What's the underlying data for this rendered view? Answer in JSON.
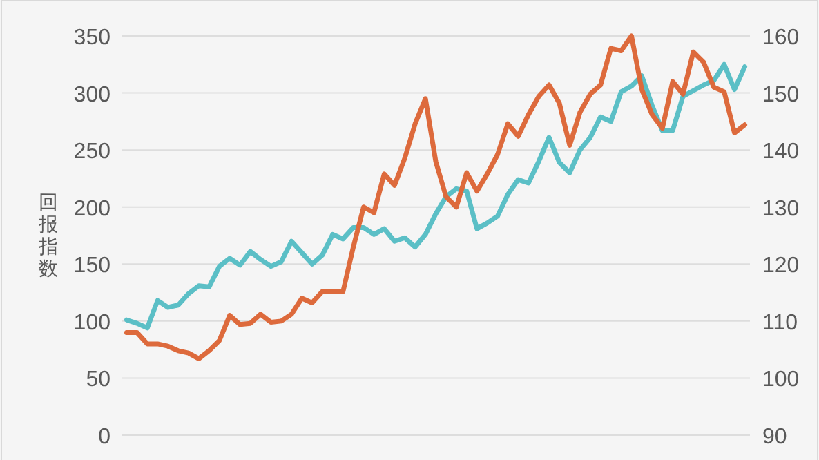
{
  "chart_data": {
    "type": "line",
    "ylabel": "回报指数",
    "categories": [
      null,
      null,
      null,
      null,
      null,
      null,
      null,
      null,
      null,
      null,
      null,
      null,
      null,
      null,
      null,
      null,
      null,
      null,
      null,
      null,
      null,
      null,
      null,
      null,
      null,
      null,
      null,
      null,
      null,
      null,
      null,
      null,
      null,
      null,
      null,
      null,
      null,
      null,
      null,
      null,
      null,
      null,
      null,
      null,
      null,
      null,
      null,
      null,
      null,
      null,
      null,
      null,
      null,
      null,
      null,
      null,
      null,
      null,
      null,
      null,
      null
    ],
    "series": [
      {
        "color": "#5bbfc6",
        "values": [
          101,
          98,
          94,
          118,
          112,
          114,
          124,
          131,
          130,
          148,
          155,
          149,
          161,
          154,
          148,
          152,
          170,
          160,
          150,
          158,
          176,
          172,
          182,
          182,
          176,
          181,
          170,
          173,
          165,
          176,
          194,
          209,
          216,
          214,
          181,
          186,
          192,
          211,
          224,
          221,
          240,
          261,
          239,
          230,
          250,
          261,
          279,
          275,
          301,
          306,
          315,
          289,
          267,
          267,
          297,
          302,
          307,
          311,
          325,
          303,
          323
        ]
      },
      {
        "color": "#dd6a3c",
        "axis": "y2",
        "values": [
          108,
          108,
          106,
          106,
          105.6,
          104.8,
          104.4,
          103.4,
          104.8,
          106.6,
          111,
          109.4,
          109.6,
          111.2,
          109.8,
          110,
          111.2,
          114,
          113.2,
          115.2,
          115.2,
          115.2,
          123,
          130,
          129,
          135.8,
          133.8,
          138.6,
          144.6,
          149,
          138,
          131.8,
          130,
          136,
          132.8,
          135.8,
          139.2,
          144.6,
          142.4,
          146.2,
          149.4,
          151.4,
          148.2,
          140.8,
          146.6,
          149.8,
          151.4,
          157.8,
          157.4,
          160,
          150.6,
          146.2,
          143.8,
          152,
          149.8,
          157.2,
          155.4,
          151,
          150.2,
          143,
          144.4
        ]
      }
    ],
    "ylim": [
      0,
      350
    ],
    "yticks": [
      0,
      50,
      100,
      150,
      200,
      250,
      300,
      350
    ],
    "y2lim": [
      90,
      160
    ],
    "y2ticks": [
      90,
      100,
      110,
      120,
      130,
      140,
      150,
      160
    ],
    "grid": "y"
  }
}
